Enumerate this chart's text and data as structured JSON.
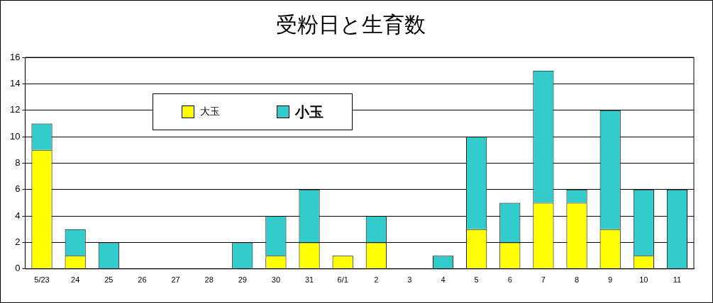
{
  "chart_data": {
    "type": "bar",
    "title": "受粉日と生育数",
    "categories": [
      "5/23",
      "24",
      "25",
      "26",
      "27",
      "28",
      "29",
      "30",
      "31",
      "6/1",
      "2",
      "3",
      "4",
      "5",
      "6",
      "7",
      "8",
      "9",
      "10",
      "11"
    ],
    "series": [
      {
        "name": "大玉",
        "color": "#ffff00",
        "values": [
          9,
          1,
          0,
          0,
          0,
          0,
          0,
          1,
          2,
          1,
          2,
          0,
          0,
          3,
          2,
          5,
          5,
          3,
          1,
          0
        ]
      },
      {
        "name": "小玉",
        "color": "#33cccc",
        "values": [
          2,
          2,
          2,
          0,
          0,
          0,
          2,
          3,
          4,
          0,
          2,
          0,
          1,
          7,
          3,
          10,
          1,
          9,
          5,
          6
        ]
      }
    ],
    "stacked": true,
    "ylim": [
      0,
      16
    ],
    "yticks": [
      0,
      2,
      4,
      6,
      8,
      10,
      12,
      14,
      16
    ],
    "grid": "y",
    "legend": "top left"
  }
}
